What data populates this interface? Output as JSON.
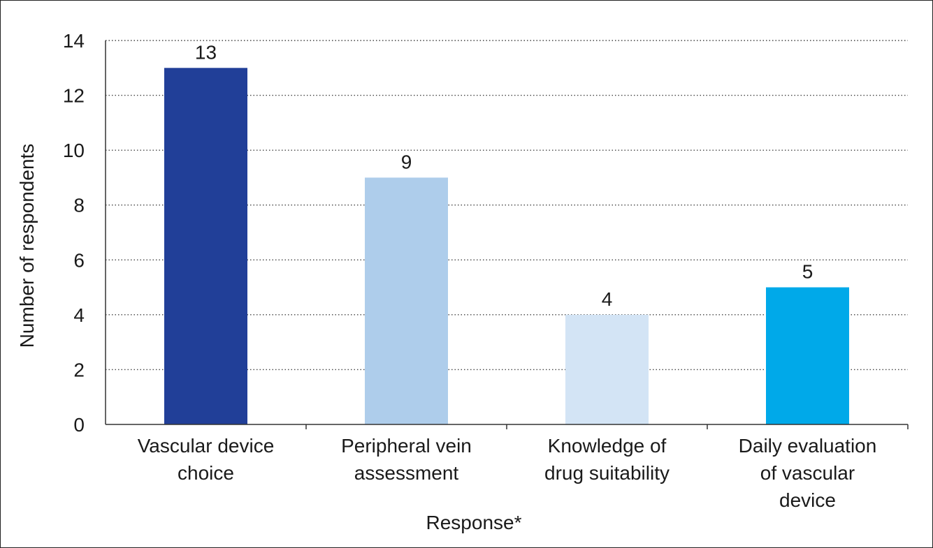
{
  "chart_data": {
    "type": "bar",
    "categories": [
      [
        "Vascular device",
        "choice"
      ],
      [
        "Peripheral vein",
        "assessment"
      ],
      [
        "Knowledge of",
        "drug suitability"
      ],
      [
        "Daily evaluation",
        "of vascular",
        "device"
      ]
    ],
    "values": [
      13,
      9,
      4,
      5
    ],
    "colors": [
      "#213f98",
      "#aecdeb",
      "#d3e4f5",
      "#00a9e9"
    ],
    "xlabel": "Response*",
    "ylabel": "Number of respondents",
    "ylim": [
      0,
      14
    ],
    "yticks": [
      0,
      2,
      4,
      6,
      8,
      10,
      12,
      14
    ],
    "grid": true,
    "data_labels": [
      "13",
      "9",
      "4",
      "5"
    ]
  }
}
